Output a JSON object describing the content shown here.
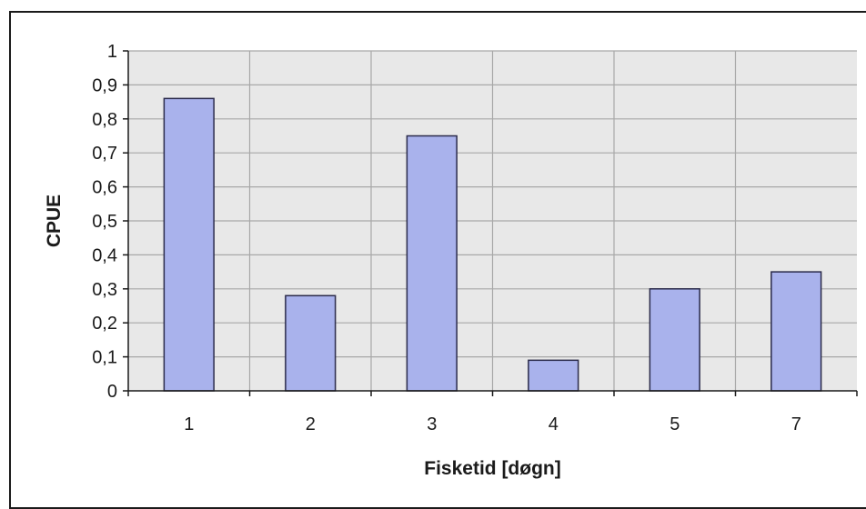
{
  "chart_data": {
    "type": "bar",
    "categories": [
      "1",
      "2",
      "3",
      "4",
      "5",
      "7"
    ],
    "values": [
      0.86,
      0.28,
      0.75,
      0.09,
      0.3,
      0.35
    ],
    "xlabel": "Fisketid [døgn]",
    "ylabel": "CPUE",
    "ylim": [
      0,
      1
    ],
    "yticks": [
      "0",
      "0,1",
      "0,2",
      "0,3",
      "0,4",
      "0,5",
      "0,6",
      "0,7",
      "0,8",
      "0,9",
      "1"
    ],
    "grid": true,
    "legend": "none",
    "colors": {
      "bar_fill": "#a9b2ec",
      "bar_stroke": "#2a2a4a",
      "plot_background": "#e8e8e8",
      "grid": "#a8a8a8"
    }
  }
}
